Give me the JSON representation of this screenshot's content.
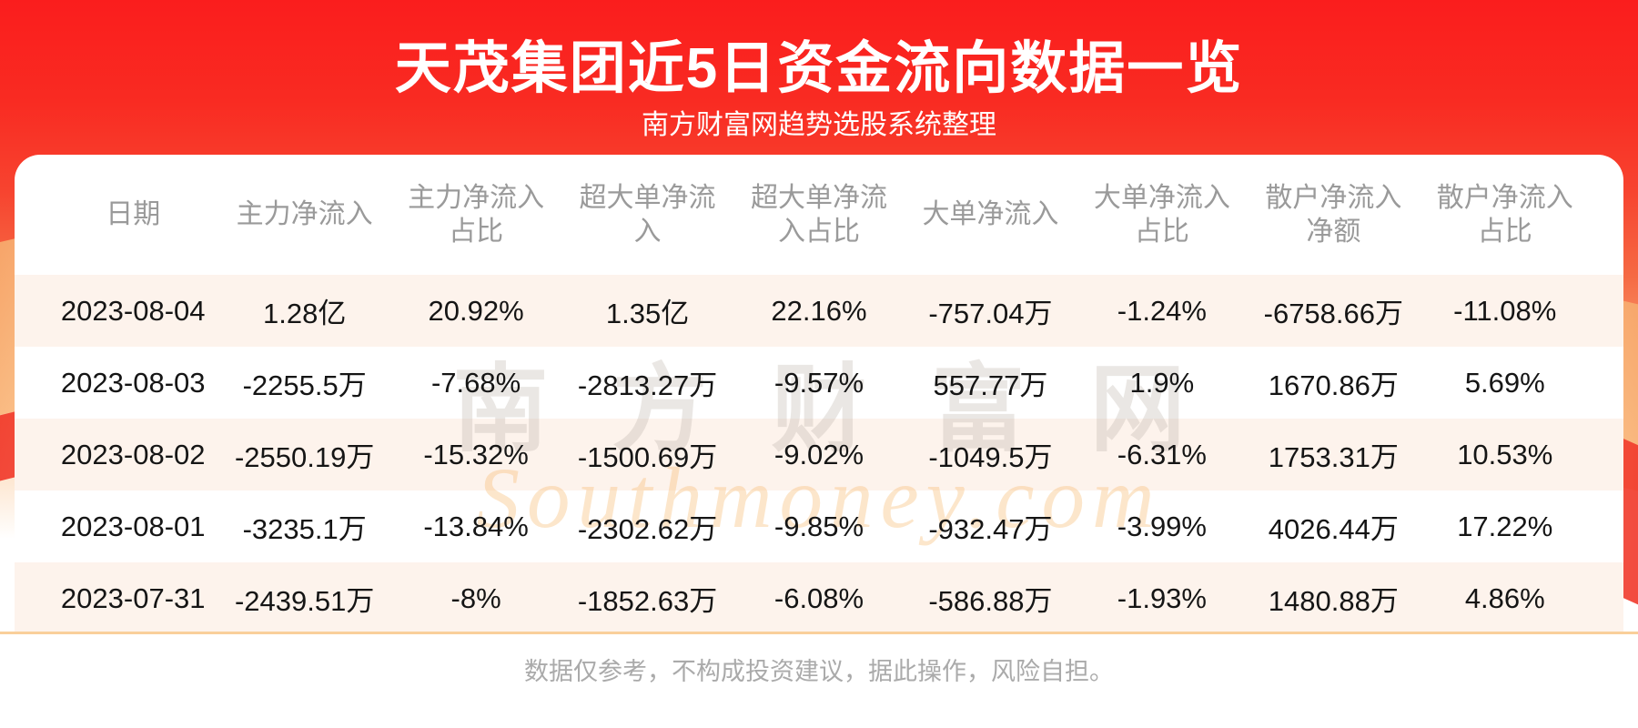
{
  "banner": {
    "title": "天茂集团近5日资金流向数据一览",
    "subtitle": "南方财富网趋势选股系统整理"
  },
  "watermark": {
    "cn": "南方财富网",
    "en": "Southmoney.com"
  },
  "footer": {
    "disclaimer": "数据仅参考，不构成投资建议，据此操作，风险自担。"
  },
  "colors": {
    "banner_red_top": "#fa1d1d",
    "banner_orange_mid": "#f9976b",
    "row_alt_background": "#fdf3ec",
    "divider_orange": "#f9cf9a",
    "header_text": "#9a9a9a",
    "body_text": "#151515",
    "footer_text": "#aaaaaa",
    "title_text": "#ffffff"
  },
  "chart_data": {
    "type": "table",
    "title": "天茂集团近5日资金流向数据一览",
    "columns": [
      "日期",
      "主力净流入",
      "主力净流入占比",
      "超大单净流入",
      "超大单净流入占比",
      "大单净流入",
      "大单净流入占比",
      "散户净流入净额",
      "散户净流入占比"
    ],
    "rows": [
      [
        "2023-08-04",
        "1.28亿",
        "20.92%",
        "1.35亿",
        "22.16%",
        "-757.04万",
        "-1.24%",
        "-6758.66万",
        "-11.08%"
      ],
      [
        "2023-08-03",
        "-2255.5万",
        "-7.68%",
        "-2813.27万",
        "-9.57%",
        "557.77万",
        "1.9%",
        "1670.86万",
        "5.69%"
      ],
      [
        "2023-08-02",
        "-2550.19万",
        "-15.32%",
        "-1500.69万",
        "-9.02%",
        "-1049.5万",
        "-6.31%",
        "1753.31万",
        "10.53%"
      ],
      [
        "2023-08-01",
        "-3235.1万",
        "-13.84%",
        "-2302.62万",
        "-9.85%",
        "-932.47万",
        "-3.99%",
        "4026.44万",
        "17.22%"
      ],
      [
        "2023-07-31",
        "-2439.51万",
        "-8%",
        "-1852.63万",
        "-6.08%",
        "-586.88万",
        "-1.93%",
        "1480.88万",
        "4.86%"
      ]
    ]
  }
}
